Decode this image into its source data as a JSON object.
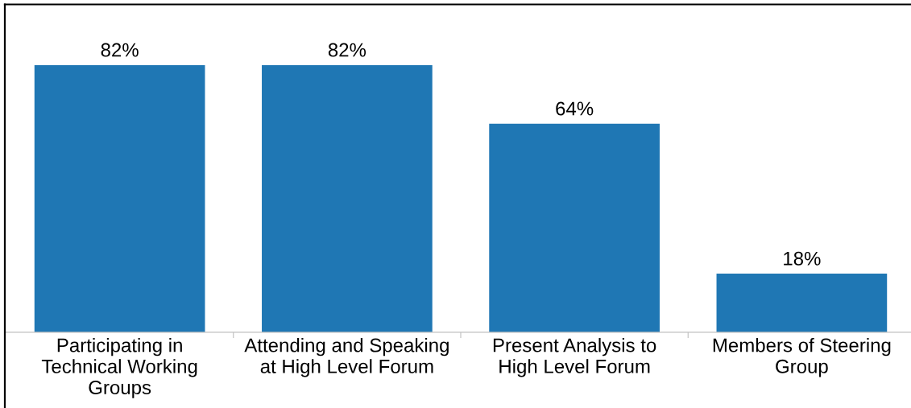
{
  "chart_data": {
    "type": "bar",
    "categories": [
      "Participating in\nTechnical Working\nGroups",
      "Attending and Speaking\nat High Level Forum",
      "Present Analysis to\nHigh Level Forum",
      "Members of Steering\nGroup"
    ],
    "values": [
      82,
      82,
      64,
      18
    ],
    "color": "#1f77b4",
    "value_labels": [
      "82%",
      "82%",
      "64%",
      "18%"
    ],
    "ylim": [
      0,
      100
    ],
    "tick_labels": "x"
  }
}
